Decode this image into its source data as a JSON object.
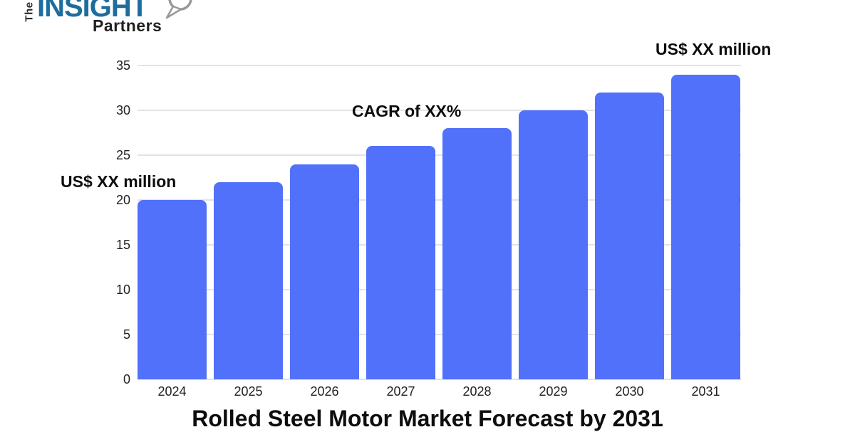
{
  "logo": {
    "the": "The",
    "insight": "INSIGHT",
    "partners": "Partners",
    "insight_color": "#1d6d9d",
    "partners_color": "#1f1f1f",
    "magnifier_color": "#989898"
  },
  "annotations": {
    "start_value": "US$ XX million",
    "cagr": "CAGR of XX%",
    "end_value": "US$ XX million"
  },
  "chart_data": {
    "type": "bar",
    "title": "Rolled Steel Motor Market Forecast by 2031",
    "categories": [
      "2024",
      "2025",
      "2026",
      "2027",
      "2028",
      "2029",
      "2030",
      "2031"
    ],
    "values": [
      20,
      22,
      24,
      26,
      28,
      30,
      32,
      34
    ],
    "xlabel": "",
    "ylabel": "",
    "ylim": [
      0,
      35
    ],
    "yticks": [
      0,
      5,
      10,
      15,
      20,
      25,
      30,
      35
    ],
    "bar_color": "#5271fa",
    "gridline_color": "#e3e3e6",
    "tick_color": "#1f1f1f",
    "grid": true,
    "legend": false
  }
}
